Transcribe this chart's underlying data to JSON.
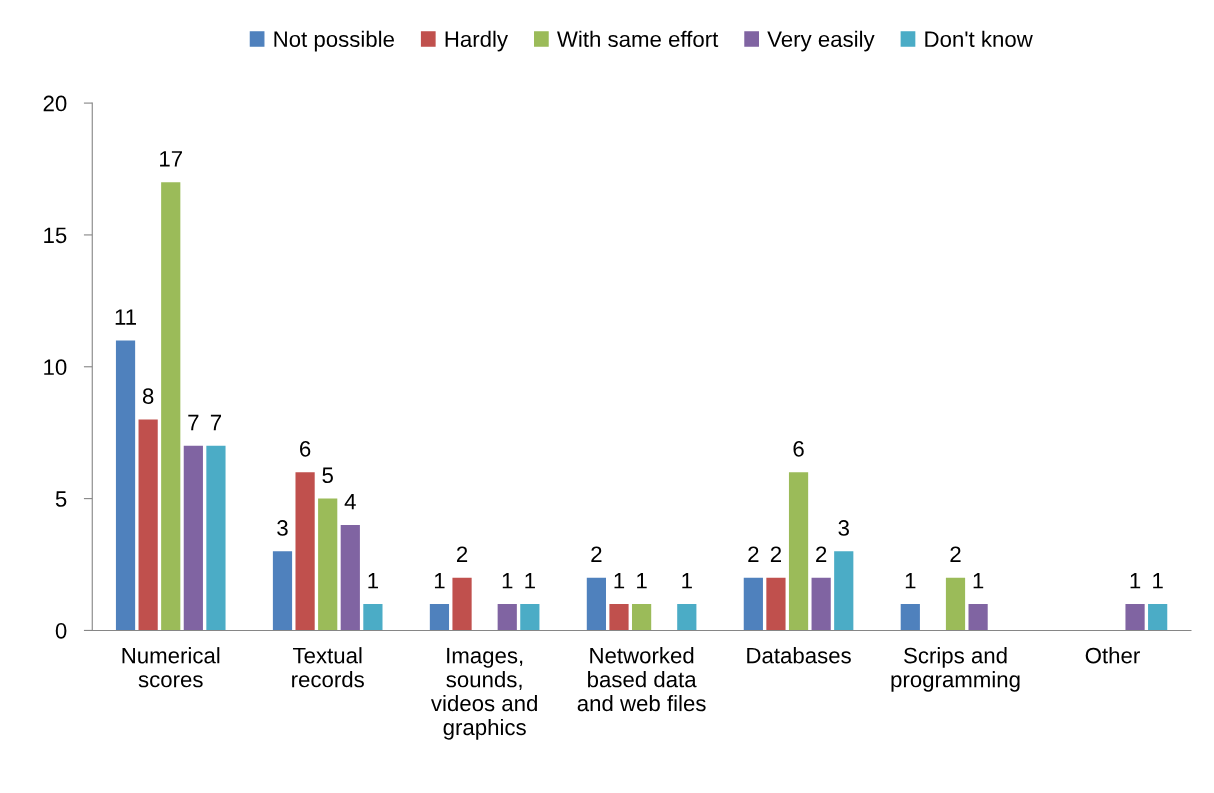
{
  "chart_data": {
    "type": "bar",
    "categories": [
      "Numerical\nscores",
      "Textual\nrecords",
      "Images,\nsounds,\nvideos and\ngraphics",
      "Networked\nbased data\nand web files",
      "Databases",
      "Scrips and\nprogramming",
      "Other"
    ],
    "series": [
      {
        "name": "Not possible",
        "color": "#4f81bd",
        "values": [
          11,
          3,
          1,
          2,
          2,
          1,
          null
        ]
      },
      {
        "name": "Hardly",
        "color": "#c0504d",
        "values": [
          8,
          6,
          2,
          1,
          2,
          null,
          null
        ]
      },
      {
        "name": "With same effort",
        "color": "#9bbb59",
        "values": [
          17,
          5,
          null,
          1,
          6,
          2,
          null
        ]
      },
      {
        "name": "Very easily",
        "color": "#8064a2",
        "values": [
          7,
          4,
          1,
          null,
          2,
          1,
          1
        ]
      },
      {
        "name": "Don't know",
        "color": "#4bacc6",
        "values": [
          7,
          1,
          1,
          1,
          3,
          null,
          1
        ]
      }
    ],
    "ylim": [
      0,
      20
    ],
    "yticks": [
      0,
      5,
      10,
      15,
      20
    ],
    "data_labels": true,
    "grid": false,
    "legend": "top"
  }
}
